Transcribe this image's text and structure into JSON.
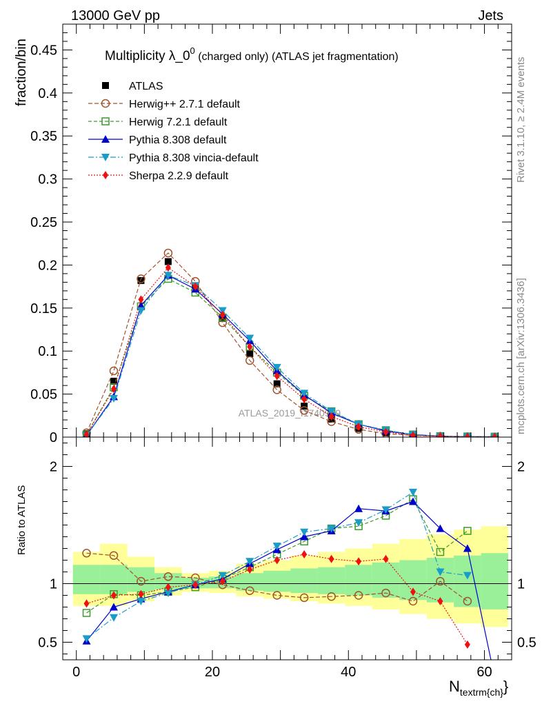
{
  "header": {
    "left": "13000 GeV pp",
    "right": "Jets"
  },
  "side_labels": {
    "rivet": "Rivet 3.1.10, ≥ 2.4M events",
    "mcplots": "mcplots.cern.ch [arXiv:1306.3436]"
  },
  "chart_data": [
    {
      "type": "line",
      "title": "Multiplicity λ_0⁰ (charged only) (ATLAS jet fragmentation)",
      "title_main": "Multiplicity λ_0",
      "title_sup": "0",
      "title_rest": " (charged only) (ATLAS jet fragmentation)",
      "ylabel": "fraction/bin",
      "xlabel": "",
      "watermark": "ATLAS_2019_I1740909",
      "xlim": [
        -2,
        64
      ],
      "ylim": [
        0,
        0.48
      ],
      "yticks": [
        0,
        0.05,
        0.1,
        0.15,
        0.2,
        0.25,
        0.3,
        0.35,
        0.4,
        0.45
      ],
      "ytick_labels": [
        "0",
        "0.05",
        "0.1",
        "0.15",
        "0.2",
        "0.25",
        "0.3",
        "0.35",
        "0.4",
        "0.45"
      ],
      "x": [
        1.5,
        5.5,
        9.5,
        13.5,
        17.5,
        21.5,
        25.5,
        29.5,
        33.5,
        37.5,
        41.5,
        45.5,
        49.5,
        53.5,
        57.5,
        61.5
      ],
      "legend_position": "top-left",
      "series": [
        {
          "name": "ATLAS",
          "color": "#000000",
          "marker": "square",
          "dash": "",
          "values": [
            0.004,
            0.065,
            0.182,
            0.204,
            0.176,
            0.138,
            0.097,
            0.062,
            0.036,
            0.021,
            0.01,
            0.005,
            0.002,
            0.001,
            0.0005,
            0.0005
          ]
        },
        {
          "name": "Herwig++ 2.7.1 default",
          "color": "#a0522d",
          "marker": "circle-open",
          "dash": "6,3",
          "values": [
            0.005,
            0.077,
            0.184,
            0.214,
            0.181,
            0.133,
            0.089,
            0.055,
            0.031,
            0.018,
            0.009,
            0.004,
            0.002,
            0.001,
            0.0005,
            0.0003
          ]
        },
        {
          "name": "Herwig 7.2.1 default",
          "color": "#3a9a2a",
          "marker": "square-open",
          "dash": "5,3",
          "values": [
            0.003,
            0.058,
            0.152,
            0.184,
            0.168,
            0.139,
            0.105,
            0.075,
            0.048,
            0.03,
            0.015,
            0.008,
            0.003,
            0.001,
            0.0007,
            0.0005
          ]
        },
        {
          "name": "Pythia 8.308 default",
          "color": "#0000cc",
          "marker": "triangle-up",
          "dash": "",
          "values": [
            0.002,
            0.047,
            0.153,
            0.188,
            0.172,
            0.143,
            0.112,
            0.077,
            0.049,
            0.028,
            0.015,
            0.007,
            0.003,
            0.001,
            0.0005,
            0.0003
          ]
        },
        {
          "name": "Pythia 8.308 vincia-default",
          "color": "#1a9cc8",
          "marker": "triangle-down",
          "dash": "8,3,2,3",
          "values": [
            0.002,
            0.045,
            0.147,
            0.188,
            0.176,
            0.147,
            0.115,
            0.081,
            0.051,
            0.03,
            0.015,
            0.008,
            0.003,
            0.001,
            0.0005,
            0.0003
          ]
        },
        {
          "name": "Sherpa 2.2.9 default",
          "color": "#ee1111",
          "marker": "diamond",
          "dash": "2,2",
          "values": [
            0.003,
            0.056,
            0.16,
            0.197,
            0.175,
            0.142,
            0.105,
            0.071,
            0.044,
            0.024,
            0.012,
            0.006,
            0.002,
            0.001,
            0.0003,
            0.0002
          ]
        }
      ]
    },
    {
      "type": "line",
      "ylabel": "Ratio to ATLAS",
      "xlabel": "N",
      "xlabel_sub": "textrm{ch}",
      "xlim": [
        -2,
        64
      ],
      "ylim": [
        0.35,
        2.25
      ],
      "yticks": [
        0.5,
        1,
        2
      ],
      "ytick_labels": [
        "0.5",
        "1",
        "2"
      ],
      "xticks": [
        0,
        20,
        40,
        60
      ],
      "xtick_labels": [
        "0",
        "20",
        "40",
        "60"
      ],
      "x": [
        1.5,
        5.5,
        9.5,
        13.5,
        17.5,
        21.5,
        25.5,
        29.5,
        33.5,
        37.5,
        41.5,
        45.5,
        49.5,
        53.5,
        57.5,
        61.5
      ],
      "bin_edges": [
        -0.5,
        3.5,
        7.5,
        11.5,
        15.5,
        19.5,
        23.5,
        27.5,
        31.5,
        35.5,
        39.5,
        43.5,
        47.5,
        51.5,
        55.5,
        59.5,
        63.5
      ],
      "band_inner": [
        [
          0.91,
          1.16
        ],
        [
          0.91,
          1.16
        ],
        [
          0.93,
          1.14
        ],
        [
          0.95,
          1.09
        ],
        [
          0.96,
          1.05
        ],
        [
          0.96,
          1.06
        ],
        [
          0.94,
          1.09
        ],
        [
          0.93,
          1.11
        ],
        [
          0.92,
          1.13
        ],
        [
          0.91,
          1.14
        ],
        [
          0.9,
          1.16
        ],
        [
          0.88,
          1.18
        ],
        [
          0.86,
          1.2
        ],
        [
          0.84,
          1.22
        ],
        [
          0.8,
          1.24
        ],
        [
          0.78,
          1.26
        ]
      ],
      "band_outer": [
        [
          0.81,
          1.27
        ],
        [
          0.81,
          1.34
        ],
        [
          0.85,
          1.23
        ],
        [
          0.9,
          1.14
        ],
        [
          0.93,
          1.09
        ],
        [
          0.92,
          1.11
        ],
        [
          0.89,
          1.17
        ],
        [
          0.87,
          1.2
        ],
        [
          0.85,
          1.24
        ],
        [
          0.83,
          1.27
        ],
        [
          0.81,
          1.3
        ],
        [
          0.78,
          1.34
        ],
        [
          0.74,
          1.38
        ],
        [
          0.7,
          1.42
        ],
        [
          0.66,
          1.46
        ],
        [
          0.63,
          1.49
        ]
      ],
      "series": [
        {
          "name": "Herwig++ 2.7.1 default",
          "color": "#a0522d",
          "marker": "circle-open",
          "dash": "6,3",
          "values": [
            1.26,
            1.24,
            1.02,
            1.06,
            1.05,
            0.99,
            0.94,
            0.9,
            0.88,
            0.89,
            0.9,
            0.92,
            0.85,
            1.02,
            0.85,
            null
          ]
        },
        {
          "name": "Herwig 7.2.1 default",
          "color": "#3a9a2a",
          "marker": "square-open",
          "dash": "5,3",
          "values": [
            0.75,
            0.91,
            0.9,
            0.93,
            0.97,
            1.04,
            1.14,
            1.25,
            1.36,
            1.47,
            1.49,
            1.58,
            1.72,
            1.27,
            1.45,
            null
          ]
        },
        {
          "name": "Pythia 8.308 default",
          "color": "#0000cc",
          "marker": "triangle-up",
          "dash": "",
          "values": [
            0.51,
            0.8,
            0.87,
            0.93,
            0.99,
            1.04,
            1.17,
            1.29,
            1.4,
            1.45,
            1.64,
            1.62,
            1.7,
            1.47,
            1.3,
            0.2
          ]
        },
        {
          "name": "Pythia 8.308 vincia-default",
          "color": "#1a9cc8",
          "marker": "triangle-down",
          "dash": "8,3,2,3",
          "values": [
            0.53,
            0.71,
            0.85,
            0.92,
            0.99,
            1.07,
            1.19,
            1.32,
            1.44,
            1.47,
            1.52,
            1.63,
            1.78,
            1.1,
            1.07,
            null
          ]
        },
        {
          "name": "Sherpa 2.2.9 default",
          "color": "#ee1111",
          "marker": "diamond",
          "dash": "2,2",
          "values": [
            0.83,
            0.9,
            0.91,
            0.97,
            0.99,
            1.02,
            1.12,
            1.2,
            1.25,
            1.21,
            1.19,
            1.21,
            0.93,
            0.85,
            0.48,
            null
          ]
        }
      ]
    }
  ]
}
